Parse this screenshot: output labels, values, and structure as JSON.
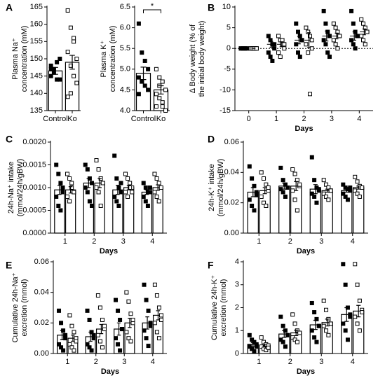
{
  "chart_data": [
    {
      "type": "bar",
      "panel": "A",
      "ylabel": [
        "Plasma Na⁺",
        "concentration (mM)"
      ],
      "categories": [
        "Control",
        "Ko"
      ],
      "markers": [
        "filled",
        "open"
      ],
      "values": [
        146.5,
        149
      ],
      "errors": [
        1,
        2
      ],
      "points": [
        [
          148,
          146,
          144,
          144,
          145,
          147,
          149,
          150,
          147
        ],
        [
          164,
          159,
          155,
          150,
          152,
          148,
          145,
          143,
          139,
          140,
          156
        ]
      ],
      "ylim": [
        135,
        165
      ],
      "yticks": [
        135,
        140,
        145,
        150,
        155,
        160,
        165
      ]
    },
    {
      "type": "bar",
      "ylabel": [
        "Plasma K⁺",
        "concentration (mM)"
      ],
      "categories": [
        "Control",
        "Ko"
      ],
      "markers": [
        "filled",
        "open"
      ],
      "values": [
        4.9,
        4.5
      ],
      "errors": [
        0.15,
        0.1
      ],
      "points": [
        [
          6.1,
          5.4,
          5.2,
          5.0,
          4.8,
          4.7,
          4.6,
          4.5,
          4.4,
          4.7
        ],
        [
          5.0,
          4.8,
          4.7,
          4.5,
          4.4,
          4.3,
          4.1,
          4.0,
          4.1,
          4.6,
          4.2
        ]
      ],
      "annotation": "*",
      "ylim": [
        4,
        6.5
      ],
      "yticks": [
        {
          "value": 4,
          "label": "4.0"
        },
        {
          "value": 4.5,
          "label": "4.5"
        },
        {
          "value": 5,
          "label": "5.0"
        },
        {
          "value": 5.5,
          "label": "5.5"
        },
        {
          "value": 6,
          "label": "6.0"
        },
        {
          "value": 6.5,
          "label": "6.5"
        }
      ]
    },
    {
      "type": "dot",
      "panel": "B",
      "ylabel": [
        "Δ Body weight (% of",
        "the initial body weight)"
      ],
      "xlabel": "Days",
      "categories": [
        "0",
        "1",
        "2",
        "3",
        "4"
      ],
      "zero_line": true,
      "series": [
        {
          "marker": "filled",
          "values": [
            0,
            1,
            2,
            3,
            3
          ],
          "errors": [
            0,
            0.7,
            0.9,
            1.2,
            1
          ],
          "points": [
            [
              0,
              0,
              0,
              0,
              0,
              0,
              0,
              0
            ],
            [
              3,
              2,
              1,
              0,
              -1,
              -2,
              -3,
              1
            ],
            [
              6,
              4,
              3,
              2,
              1,
              -1,
              -2,
              2
            ],
            [
              9,
              6,
              4,
              3,
              2,
              1,
              -1,
              -2
            ],
            [
              9,
              6,
              4,
              3,
              2,
              1,
              0,
              3
            ]
          ]
        },
        {
          "marker": "open",
          "values": [
            0,
            1,
            2,
            3,
            4
          ],
          "errors": [
            0,
            0.6,
            1.8,
            0.7,
            0.7
          ],
          "points": [
            [
              0,
              0,
              0,
              0,
              0,
              0,
              0,
              0
            ],
            [
              3,
              2,
              1,
              0,
              -1,
              -2,
              2,
              1
            ],
            [
              5,
              4,
              3,
              2,
              1,
              -1,
              -11,
              0
            ],
            [
              6,
              5,
              4,
              3,
              2,
              1,
              0,
              3
            ],
            [
              7,
              6,
              5,
              4,
              3,
              2,
              1,
              4
            ]
          ]
        }
      ],
      "ylim": [
        -15,
        10
      ],
      "yticks": [
        -15,
        -10,
        -5,
        0,
        5,
        10
      ]
    },
    {
      "type": "grouped-bar",
      "panel": "C",
      "ylabel": [
        "24h-Na⁺ intake",
        "(mmol/24h/gBW)"
      ],
      "xlabel": "Days",
      "categories": [
        "1",
        "2",
        "3",
        "4"
      ],
      "series": [
        {
          "marker": "filled",
          "values": [
            0.00095,
            0.0011,
            0.00095,
            0.0009
          ],
          "errors": [
            0.0001,
            0.0001,
            0.0001,
            5e-05
          ],
          "points": [
            [
              0.0015,
              0.0013,
              0.0011,
              0.0009,
              0.0008,
              0.0006,
              0.0005,
              0.001
            ],
            [
              0.0015,
              0.0014,
              0.0012,
              0.0011,
              0.001,
              0.0009,
              0.0007,
              0.0006
            ],
            [
              0.0017,
              0.0012,
              0.001,
              0.0009,
              0.0008,
              0.0007,
              0.0006,
              0.0011
            ],
            [
              0.0011,
              0.001,
              0.0009,
              0.0009,
              0.0008,
              0.0007,
              0.0006,
              0.001
            ]
          ]
        },
        {
          "marker": "open",
          "values": [
            0.00095,
            0.0011,
            0.001,
            0.001
          ],
          "errors": [
            7e-05,
            0.0001,
            5e-05,
            6e-05
          ],
          "points": [
            [
              0.0013,
              0.0012,
              0.001,
              0.0009,
              0.0008,
              0.0007,
              0.0011,
              0.0009
            ],
            [
              0.0016,
              0.0014,
              0.0012,
              0.0011,
              0.001,
              0.0009,
              0.0006,
              0.0011
            ],
            [
              0.0013,
              0.0012,
              0.0011,
              0.001,
              0.0009,
              0.0008,
              0.001,
              0.0009
            ],
            [
              0.0013,
              0.0012,
              0.0011,
              0.001,
              0.0009,
              0.0008,
              0.0007,
              0.001
            ]
          ]
        }
      ],
      "ylim": [
        0,
        0.002
      ],
      "yticks": [
        {
          "value": 0,
          "label": "0.0000"
        },
        {
          "value": 0.0005,
          "label": "0.0005"
        },
        {
          "value": 0.001,
          "label": "0.0010"
        },
        {
          "value": 0.0015,
          "label": "0.0015"
        },
        {
          "value": 0.002,
          "label": "0.0020"
        }
      ]
    },
    {
      "type": "grouped-bar",
      "panel": "D",
      "ylabel": [
        "24h-K⁺ intake",
        "(mmol/24h/gBW)"
      ],
      "xlabel": "Days",
      "categories": [
        "1",
        "2",
        "3",
        "4"
      ],
      "series": [
        {
          "marker": "filled",
          "values": [
            0.027,
            0.031,
            0.029,
            0.028
          ],
          "errors": [
            0.003,
            0.002,
            0.003,
            0.001
          ],
          "points": [
            [
              0.044,
              0.036,
              0.031,
              0.027,
              0.022,
              0.018,
              0.015,
              0.025
            ],
            [
              0.043,
              0.035,
              0.032,
              0.03,
              0.029,
              0.027,
              0.024,
              0.03
            ],
            [
              0.05,
              0.035,
              0.03,
              0.028,
              0.026,
              0.024,
              0.02,
              0.029
            ],
            [
              0.032,
              0.03,
              0.029,
              0.028,
              0.026,
              0.024,
              0.022,
              0.03
            ]
          ]
        },
        {
          "marker": "open",
          "values": [
            0.028,
            0.031,
            0.028,
            0.03
          ],
          "errors": [
            0.002,
            0.003,
            0.001,
            0.001
          ],
          "points": [
            [
              0.04,
              0.036,
              0.032,
              0.028,
              0.024,
              0.02,
              0.018,
              0.03
            ],
            [
              0.042,
              0.039,
              0.035,
              0.031,
              0.028,
              0.022,
              0.015,
              0.032
            ],
            [
              0.035,
              0.032,
              0.03,
              0.028,
              0.026,
              0.024,
              0.022,
              0.028
            ],
            [
              0.037,
              0.034,
              0.031,
              0.03,
              0.028,
              0.026,
              0.024,
              0.03
            ]
          ]
        }
      ],
      "ylim": [
        0,
        0.06
      ],
      "yticks": [
        {
          "value": 0,
          "label": "0.00"
        },
        {
          "value": 0.02,
          "label": "0.02"
        },
        {
          "value": 0.04,
          "label": "0.04"
        },
        {
          "value": 0.06,
          "label": "0.06"
        }
      ]
    },
    {
      "type": "grouped-bar",
      "panel": "E",
      "ylabel": [
        "Cumulative 24h-Na⁺",
        "excretion (mmol)"
      ],
      "xlabel": "Days",
      "categories": [
        "1",
        "2",
        "3",
        "4"
      ],
      "series": [
        {
          "marker": "filled",
          "values": [
            0.012,
            0.011,
            0.016,
            0.02
          ],
          "errors": [
            0.003,
            0.003,
            0.004,
            0.004
          ],
          "points": [
            [
              0.028,
              0.02,
              0.015,
              0.01,
              0.006,
              0.004,
              0.002,
              0.012
            ],
            [
              0.028,
              0.022,
              0.014,
              0.01,
              0.006,
              0.004,
              0.002,
              0.012
            ],
            [
              0.035,
              0.028,
              0.022,
              0.016,
              0.01,
              0.006,
              0.002,
              0.016
            ],
            [
              0.045,
              0.035,
              0.028,
              0.02,
              0.015,
              0.01,
              0.005,
              0.018
            ]
          ]
        },
        {
          "marker": "open",
          "values": [
            0.01,
            0.016,
            0.02,
            0.025
          ],
          "errors": [
            0.002,
            0.003,
            0.003,
            0.003
          ],
          "points": [
            [
              0.025,
              0.018,
              0.014,
              0.01,
              0.006,
              0.004,
              0.002,
              0.008
            ],
            [
              0.038,
              0.03,
              0.022,
              0.016,
              0.012,
              0.008,
              0.004,
              0.018
            ],
            [
              0.04,
              0.034,
              0.026,
              0.02,
              0.014,
              0.01,
              0.008,
              0.022
            ],
            [
              0.045,
              0.038,
              0.03,
              0.025,
              0.02,
              0.014,
              0.01,
              0.022
            ]
          ]
        }
      ],
      "ylim": [
        0,
        0.06
      ],
      "yticks": [
        {
          "value": 0,
          "label": "0.00"
        },
        {
          "value": 0.02,
          "label": "0.02"
        },
        {
          "value": 0.04,
          "label": "0.04"
        },
        {
          "value": 0.06,
          "label": "0.06"
        }
      ]
    },
    {
      "type": "grouped-bar",
      "panel": "F",
      "ylabel": [
        "Cumulative 24h-K⁺",
        "excretion (mmol)"
      ],
      "xlabel": "Days",
      "categories": [
        "1",
        "2",
        "3",
        "4"
      ],
      "series": [
        {
          "marker": "filled",
          "values": [
            0.4,
            0.85,
            1.25,
            1.7
          ],
          "errors": [
            0.08,
            0.15,
            0.2,
            0.3
          ],
          "points": [
            [
              0.8,
              0.6,
              0.5,
              0.4,
              0.3,
              0.2,
              0.1,
              0.3
            ],
            [
              1.6,
              1.2,
              1.0,
              0.8,
              0.6,
              0.5,
              0.3,
              0.8
            ],
            [
              2.2,
              1.8,
              1.5,
              1.2,
              1.0,
              0.7,
              0.5,
              1.2
            ],
            [
              3.9,
              3.0,
              2.0,
              1.7,
              1.3,
              1.0,
              0.6,
              1.6
            ]
          ]
        },
        {
          "marker": "open",
          "values": [
            0.35,
            0.9,
            1.35,
            1.85
          ],
          "errors": [
            0.06,
            0.12,
            0.15,
            0.25
          ],
          "points": [
            [
              0.7,
              0.5,
              0.4,
              0.35,
              0.3,
              0.2,
              0.15,
              0.25
            ],
            [
              1.7,
              1.3,
              1.0,
              0.9,
              0.7,
              0.6,
              0.5,
              0.9
            ],
            [
              2.3,
              1.9,
              1.5,
              1.3,
              1.2,
              1.0,
              0.8,
              1.3
            ],
            [
              3.9,
              3.0,
              2.3,
              1.9,
              1.6,
              1.3,
              1.0,
              1.8
            ]
          ]
        }
      ],
      "ylim": [
        0,
        4
      ],
      "yticks": [
        0,
        1,
        2,
        3,
        4
      ]
    }
  ]
}
